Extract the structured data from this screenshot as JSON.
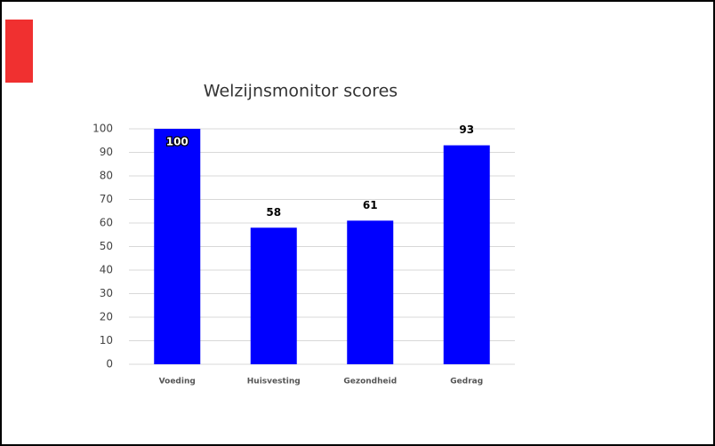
{
  "chart_data": {
    "type": "bar",
    "title": "Welzijnsmonitor scores",
    "categories": [
      "Voeding",
      "Huisvesting",
      "Gezondheid",
      "Gedrag"
    ],
    "values": [
      100,
      58,
      61,
      93
    ],
    "color": "#0000ff",
    "ylim": [
      0,
      100
    ],
    "yticks": [
      0,
      10,
      20,
      30,
      40,
      50,
      60,
      70,
      80,
      90,
      100
    ],
    "grid": true
  }
}
